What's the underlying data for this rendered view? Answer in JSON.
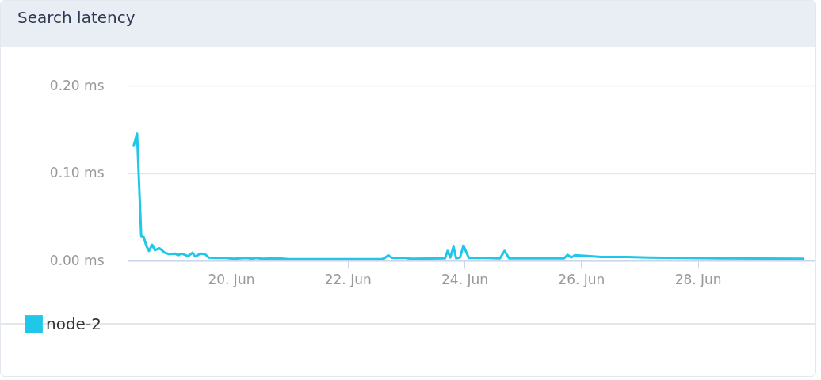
{
  "chart_data": {
    "type": "line",
    "title": "Search latency",
    "x": [
      "--06-18T08:00",
      "--06-18T09:24",
      "--06-18T11:06",
      "--06-18T12:06",
      "--06-18T13:12",
      "--06-18T14:18",
      "--06-18T15:36",
      "--06-18T16:42",
      "--06-18T18:42",
      "--06-18T20:48",
      "--06-18T22:30",
      "--06-19T01:12",
      "--06-19T02:12",
      "--06-19T03:36",
      "--06-19T06:24",
      "--06-19T08:12",
      "--06-19T09:18",
      "--06-19T11:30",
      "--06-19T13:18",
      "--06-19T14:48",
      "--06-19T17:30",
      "--06-19T21:48",
      "--06-20T01:05",
      "--06-20T06:30",
      "--06-20T08:42",
      "--06-20T10:18",
      "--06-20T13:00",
      "--06-20T19:36",
      "--06-20T23:54",
      "--06-22T14:00",
      "--06-22T15:00",
      "--06-22T16:42",
      "--06-22T18:18",
      "--06-22T23:42",
      "--06-23T01:54",
      "--06-23T16:00",
      "--06-23T17:06",
      "--06-23T18:12",
      "--06-23T19:30",
      "--06-23T20:36",
      "--06-23T22:12",
      "--06-23T23:36",
      "--06-24T01:48",
      "--06-24T08:18",
      "--06-24T14:36",
      "--06-24T16:30",
      "--06-24T18:24",
      "--06-25T17:00",
      "--06-25T18:24",
      "--06-25T20:00",
      "--06-25T21:18",
      "--06-26T03:48",
      "--06-26T08:12",
      "--06-26T19:00",
      "--06-27T03:48",
      "--06-27T16:48",
      "--06-28T09:06",
      "--06-29T19:18"
    ],
    "series": [
      {
        "name": "node-2",
        "color": "#1fc8e8",
        "values": [
          0.131,
          0.145,
          0.028,
          0.027,
          0.017,
          0.011,
          0.018,
          0.012,
          0.014,
          0.009,
          0.0075,
          0.008,
          0.006,
          0.008,
          0.005,
          0.009,
          0.0045,
          0.008,
          0.0075,
          0.0035,
          0.003,
          0.003,
          0.002,
          0.003,
          0.002,
          0.003,
          0.002,
          0.0025,
          0.0015,
          0.0015,
          0.0025,
          0.006,
          0.003,
          0.003,
          0.002,
          0.0025,
          0.011,
          0.0035,
          0.016,
          0.0025,
          0.0035,
          0.017,
          0.003,
          0.003,
          0.0025,
          0.011,
          0.0025,
          0.0025,
          0.0065,
          0.0035,
          0.006,
          0.005,
          0.004,
          0.004,
          0.0035,
          0.003,
          0.0025,
          0.002
        ]
      }
    ],
    "xlim": [
      "--06-18T05:30",
      "--06-30T01:00"
    ],
    "xticks": [
      {
        "value": "--06-20",
        "label": "20. Jun"
      },
      {
        "value": "--06-22",
        "label": "22. Jun"
      },
      {
        "value": "--06-24",
        "label": "24. Jun"
      },
      {
        "value": "--06-26",
        "label": "26. Jun"
      },
      {
        "value": "--06-28",
        "label": "28. Jun"
      }
    ],
    "ylim": [
      0,
      0.2
    ],
    "yticks": [
      {
        "value": 0,
        "label": "0.00 ms"
      },
      {
        "value": 0.1,
        "label": "0.10 ms"
      },
      {
        "value": 0.2,
        "label": "0.20 ms"
      }
    ],
    "grid": "y",
    "legend": "bottom left"
  }
}
